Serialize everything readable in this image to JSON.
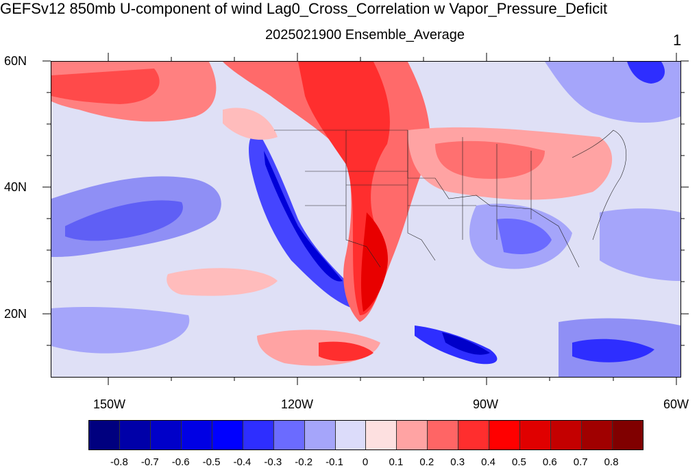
{
  "title": "GEFSv12 850mb U-component of wind Lag0_Cross_Correlation w Vapor_Pressure_Deficit",
  "subtitle": "2025021900 Ensemble_Average",
  "corner_label": "1",
  "lat_labels": [
    "60N",
    "40N",
    "20N"
  ],
  "lon_labels": [
    "150W",
    "120W",
    "90W",
    "60W"
  ],
  "colorbar": {
    "colors": [
      "#00007f",
      "#0000a8",
      "#0000c9",
      "#0000e4",
      "#0000ff",
      "#2e2eff",
      "#6b6bff",
      "#a5a5fa",
      "#dcdcfa",
      "#fde0e0",
      "#ffa3a3",
      "#ff6565",
      "#ff2e2e",
      "#ff0000",
      "#e00000",
      "#c40000",
      "#a00000",
      "#800000"
    ],
    "labels": [
      "-0.8",
      "-0.7",
      "-0.6",
      "-0.5",
      "-0.4",
      "-0.3",
      "-0.2",
      "-0.1",
      "0",
      "0.1",
      "0.2",
      "0.3",
      "0.4",
      "0.5",
      "0.6",
      "0.7",
      "0.8"
    ]
  }
}
